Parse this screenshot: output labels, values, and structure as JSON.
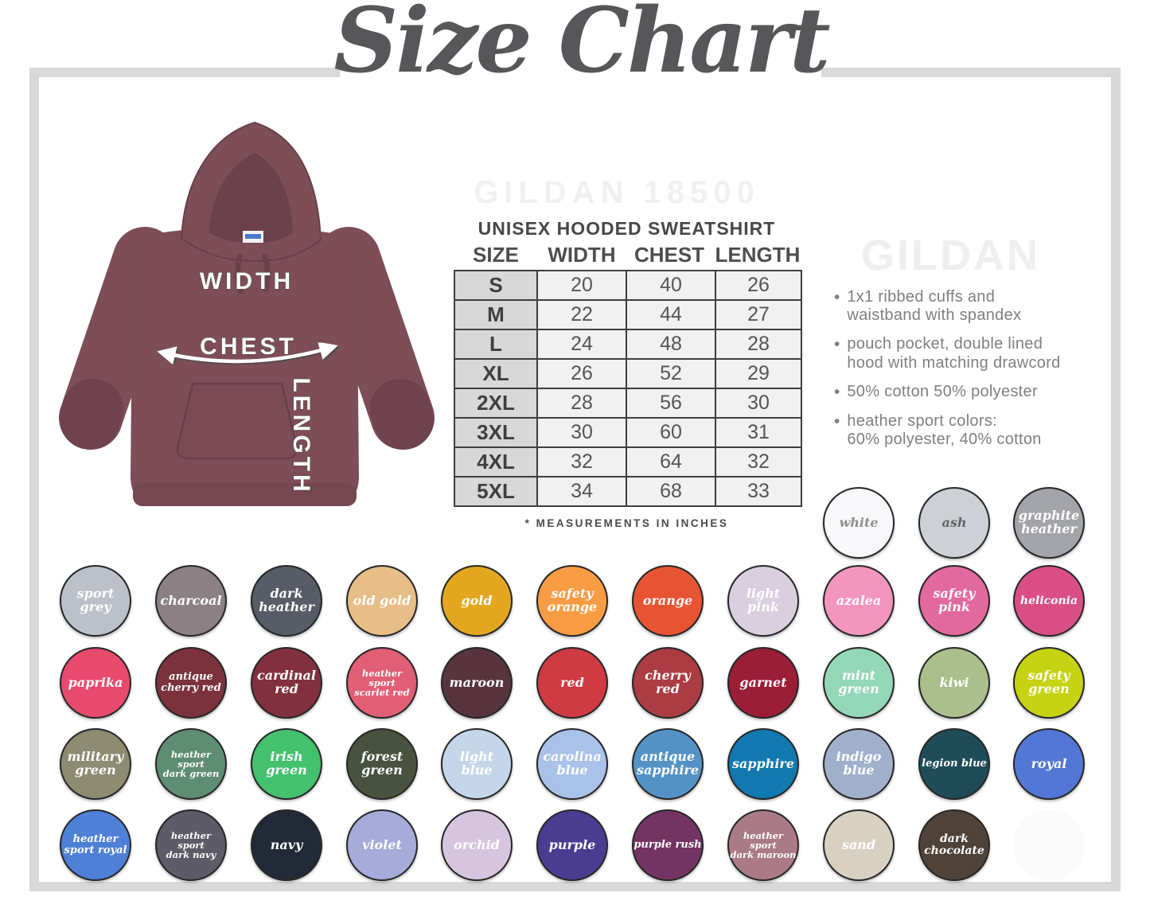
{
  "title": "Size Chart",
  "watermarks": {
    "top": "GILDAN 18500",
    "side": "GILDAN"
  },
  "hoodie": {
    "width_label": "WIDTH",
    "chest_label": "CHEST",
    "length_label": "LENGTH",
    "color": "#7d4e57"
  },
  "table": {
    "title": "UNISEX HOODED SWEATSHIRT",
    "headers": [
      "SIZE",
      "WIDTH",
      "CHEST",
      "LENGTH"
    ],
    "rows": [
      [
        "S",
        "20",
        "40",
        "26"
      ],
      [
        "M",
        "22",
        "44",
        "27"
      ],
      [
        "L",
        "24",
        "48",
        "28"
      ],
      [
        "XL",
        "26",
        "52",
        "29"
      ],
      [
        "2XL",
        "28",
        "56",
        "30"
      ],
      [
        "3XL",
        "30",
        "60",
        "31"
      ],
      [
        "4XL",
        "32",
        "64",
        "32"
      ],
      [
        "5XL",
        "34",
        "68",
        "33"
      ]
    ],
    "footnote": "* MEASUREMENTS IN INCHES"
  },
  "features": [
    "1x1 ribbed cuffs and\nwaistband with spandex",
    "pouch pocket, double lined\nhood with matching drawcord",
    "50% cotton 50% polyester",
    "heather sport colors:\n60% polyester, 40% cotton"
  ],
  "frame_color": "#d9d9d9",
  "swatch_rows": [
    [
      {
        "label": "white",
        "color": "#f8f8fa",
        "text": "#8f8f8f"
      },
      {
        "label": "ash",
        "color": "#cdd0d4",
        "text": "#606468"
      },
      {
        "label": "graphite\nheather",
        "color": "#a2a4a9"
      }
    ],
    [
      {
        "label": "sport\ngrey",
        "color": "#bcc0c9"
      },
      {
        "label": "charcoal",
        "color": "#8b8084"
      },
      {
        "label": "dark\nheather",
        "color": "#575c66"
      },
      {
        "label": "old gold",
        "color": "#e7bd88"
      },
      {
        "label": "gold",
        "color": "#e3a71f"
      },
      {
        "label": "safety\norange",
        "color": "#f89c44"
      },
      {
        "label": "orange",
        "color": "#e65433"
      },
      {
        "label": "light\npink",
        "color": "#d9cfdf"
      },
      {
        "label": "azalea",
        "color": "#f495be"
      },
      {
        "label": "safety\npink",
        "color": "#e2699e"
      },
      {
        "label": "heliconia",
        "color": "#d94f85"
      }
    ],
    [
      {
        "label": "paprika",
        "color": "#e84a6d"
      },
      {
        "label": "antique\ncherry red",
        "color": "#7b323c"
      },
      {
        "label": "cardinal\nred",
        "color": "#82303f"
      },
      {
        "label": "heather sport\nscarlet red",
        "color": "#e05f74"
      },
      {
        "label": "maroon",
        "color": "#57343e"
      },
      {
        "label": "red",
        "color": "#d03a42"
      },
      {
        "label": "cherry\nred",
        "color": "#ab3c44"
      },
      {
        "label": "garnet",
        "color": "#9b1e37"
      },
      {
        "label": "mint\ngreen",
        "color": "#93d7b8"
      },
      {
        "label": "kiwi",
        "color": "#aabf8b"
      },
      {
        "label": "safety\ngreen",
        "color": "#c6d214"
      }
    ],
    [
      {
        "label": "military\ngreen",
        "color": "#8d8b71"
      },
      {
        "label": "heather sport\ndark green",
        "color": "#5e8d73"
      },
      {
        "label": "irish\ngreen",
        "color": "#43c16e"
      },
      {
        "label": "forest\ngreen",
        "color": "#49523f"
      },
      {
        "label": "light\nblue",
        "color": "#c5d5ea"
      },
      {
        "label": "carolina\nblue",
        "color": "#aac1ea"
      },
      {
        "label": "antique\nsapphire",
        "color": "#5492c6"
      },
      {
        "label": "sapphire",
        "color": "#1179b0"
      },
      {
        "label": "indigo\nblue",
        "color": "#a0b0cb"
      },
      {
        "label": "legion blue",
        "color": "#204c59"
      },
      {
        "label": "royal",
        "color": "#5377d5"
      }
    ],
    [
      {
        "label": "heather\nsport royal",
        "color": "#4e80d8"
      },
      {
        "label": "heather sport\ndark navy",
        "color": "#5d5b67"
      },
      {
        "label": "navy",
        "color": "#232a37"
      },
      {
        "label": "violet",
        "color": "#a6abd9"
      },
      {
        "label": "orchid",
        "color": "#d7c5e0"
      },
      {
        "label": "purple",
        "color": "#4a3c90"
      },
      {
        "label": "purple rush",
        "color": "#743463"
      },
      {
        "label": "heather sport\ndark maroon",
        "color": "#aa7b87"
      },
      {
        "label": "sand",
        "color": "#d8d1c1"
      },
      {
        "label": "dark\nchocolate",
        "color": "#4f4238"
      },
      {
        "label": "",
        "color": "#fbfafb"
      }
    ]
  ]
}
